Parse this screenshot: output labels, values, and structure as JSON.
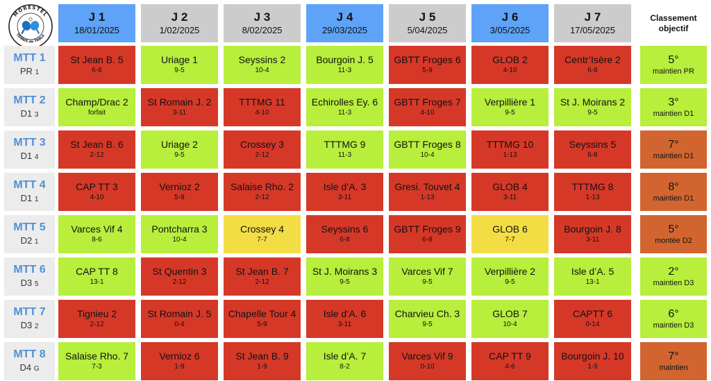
{
  "logo": {
    "top_text": "MORESTEL",
    "side_text": "TENNIS de TABLE"
  },
  "header": {
    "objective_title": "Classement objectif"
  },
  "days": [
    {
      "label": "J 1",
      "date": "18/01/2025",
      "color": "#5ea3f7"
    },
    {
      "label": "J 2",
      "date": "1/02/2025",
      "color": "#cccccc"
    },
    {
      "label": "J 3",
      "date": "8/02/2025",
      "color": "#cccccc"
    },
    {
      "label": "J 4",
      "date": "29/03/2025",
      "color": "#5ea3f7"
    },
    {
      "label": "J 5",
      "date": "5/04/2025",
      "color": "#cccccc"
    },
    {
      "label": "J 6",
      "date": "3/05/2025",
      "color": "#5ea3f7"
    },
    {
      "label": "J 7",
      "date": "17/05/2025",
      "color": "#cccccc"
    }
  ],
  "colors": {
    "win": "#b8ee3c",
    "loss": "#d63828",
    "draw": "#f3dd45",
    "obj_green": "#b8ee3c",
    "obj_orange": "#d2652f"
  },
  "teams": [
    {
      "name": "MTT 1",
      "level": "PR",
      "pool": "1",
      "matches": [
        {
          "opp": "St Jean B. 5",
          "score": "6-8",
          "result": "loss"
        },
        {
          "opp": "Uriage 1",
          "score": "9-5",
          "result": "win"
        },
        {
          "opp": "Seyssins 2",
          "score": "10-4",
          "result": "win"
        },
        {
          "opp": "Bourgoin J. 5",
          "score": "11-3",
          "result": "win"
        },
        {
          "opp": "GBTT Froges 6",
          "score": "5-9",
          "result": "loss"
        },
        {
          "opp": "GLOB 2",
          "score": "4-10",
          "result": "loss"
        },
        {
          "opp": "Centr’Isère 2",
          "score": "6-8",
          "result": "loss"
        }
      ],
      "objective": {
        "place": "5°",
        "text": "maintien PR",
        "color": "obj_green"
      }
    },
    {
      "name": "MTT 2",
      "level": "D1",
      "pool": "3",
      "matches": [
        {
          "opp": "Champ/Drac 2",
          "score": "forfait",
          "result": "win"
        },
        {
          "opp": "St Romain J. 2",
          "score": "3-11",
          "result": "loss"
        },
        {
          "opp": "TTTMG 11",
          "score": "4-10",
          "result": "loss"
        },
        {
          "opp": "Echirolles Ey. 6",
          "score": "11-3",
          "result": "win"
        },
        {
          "opp": "GBTT Froges 7",
          "score": "4-10",
          "result": "loss"
        },
        {
          "opp": "Verpillière 1",
          "score": "9-5",
          "result": "win"
        },
        {
          "opp": "St J. Moirans 2",
          "score": "9-5",
          "result": "win"
        }
      ],
      "objective": {
        "place": "3°",
        "text": "maintien D1",
        "color": "obj_green"
      }
    },
    {
      "name": "MTT 3",
      "level": "D1",
      "pool": "4",
      "matches": [
        {
          "opp": "St Jean B. 6",
          "score": "2-12",
          "result": "loss"
        },
        {
          "opp": "Uriage 2",
          "score": "9-5",
          "result": "win"
        },
        {
          "opp": "Crossey 3",
          "score": "2-12",
          "result": "loss"
        },
        {
          "opp": "TTTMG 9",
          "score": "11-3",
          "result": "win"
        },
        {
          "opp": "GBTT Froges 8",
          "score": "10-4",
          "result": "win"
        },
        {
          "opp": "TTTMG 10",
          "score": "1-13",
          "result": "loss"
        },
        {
          "opp": "Seyssins 5",
          "score": "6-8",
          "result": "loss"
        }
      ],
      "objective": {
        "place": "7°",
        "text": "maintien D1",
        "color": "obj_orange"
      }
    },
    {
      "name": "MTT 4",
      "level": "D1",
      "pool": "1",
      "matches": [
        {
          "opp": "CAP TT 3",
          "score": "4-10",
          "result": "loss"
        },
        {
          "opp": "Vernioz 2",
          "score": "5-9",
          "result": "loss"
        },
        {
          "opp": "Salaise Rho. 2",
          "score": "2-12",
          "result": "loss"
        },
        {
          "opp": "Isle d’A. 3",
          "score": "3-11",
          "result": "loss"
        },
        {
          "opp": "Gresi. Touvet 4",
          "score": "1-13",
          "result": "loss"
        },
        {
          "opp": "GLOB 4",
          "score": "3-11",
          "result": "loss"
        },
        {
          "opp": "TTTMG 8",
          "score": "1-13",
          "result": "loss"
        }
      ],
      "objective": {
        "place": "8°",
        "text": "maintien D1",
        "color": "obj_orange"
      }
    },
    {
      "name": "MTT 5",
      "level": "D2",
      "pool": "1",
      "matches": [
        {
          "opp": "Varces Vif 4",
          "score": "8-6",
          "result": "win"
        },
        {
          "opp": "Pontcharra 3",
          "score": "10-4",
          "result": "win"
        },
        {
          "opp": "Crossey 4",
          "score": "7-7",
          "result": "draw"
        },
        {
          "opp": "Seyssins 6",
          "score": "6-8",
          "result": "loss"
        },
        {
          "opp": "GBTT Froges 9",
          "score": "6-8",
          "result": "loss"
        },
        {
          "opp": "GLOB 6",
          "score": "7-7",
          "result": "draw"
        },
        {
          "opp": "Bourgoin J. 8",
          "score": "3-11",
          "result": "loss"
        }
      ],
      "objective": {
        "place": "5°",
        "text": "montée D2",
        "color": "obj_orange"
      }
    },
    {
      "name": "MTT 6",
      "level": "D3",
      "pool": "5",
      "matches": [
        {
          "opp": "CAP TT 8",
          "score": "13-1",
          "result": "win"
        },
        {
          "opp": "St Quentin 3",
          "score": "2-12",
          "result": "loss"
        },
        {
          "opp": "St Jean B. 7",
          "score": "2-12",
          "result": "loss"
        },
        {
          "opp": "St J. Moirans 3",
          "score": "9-5",
          "result": "win"
        },
        {
          "opp": "Varces Vif 7",
          "score": "9-5",
          "result": "win"
        },
        {
          "opp": "Verpillière 2",
          "score": "9-5",
          "result": "win"
        },
        {
          "opp": "Isle d’A. 5",
          "score": "13-1",
          "result": "win"
        }
      ],
      "objective": {
        "place": "2°",
        "text": "maintien D3",
        "color": "obj_green"
      }
    },
    {
      "name": "MTT 7",
      "level": "D3",
      "pool": "2",
      "matches": [
        {
          "opp": "Tignieu 2",
          "score": "2-12",
          "result": "loss"
        },
        {
          "opp": "St Romain J. 5",
          "score": "0-4",
          "result": "loss"
        },
        {
          "opp": "Chapelle Tour 4",
          "score": "5-9",
          "result": "loss"
        },
        {
          "opp": "Isle d’A. 6",
          "score": "3-11",
          "result": "loss"
        },
        {
          "opp": "Charvieu Ch. 3",
          "score": "9-5",
          "result": "win"
        },
        {
          "opp": "GLOB 7",
          "score": "10-4",
          "result": "win"
        },
        {
          "opp": "CAPTT 6",
          "score": "0-14",
          "result": "loss"
        }
      ],
      "objective": {
        "place": "6°",
        "text": "maintien D3",
        "color": "obj_green"
      }
    },
    {
      "name": "MTT 8",
      "level": "D4",
      "pool": "G",
      "matches": [
        {
          "opp": "Salaise Rho. 7",
          "score": "7-3",
          "result": "win"
        },
        {
          "opp": "Vernioz 6",
          "score": "1-9",
          "result": "loss"
        },
        {
          "opp": "St Jean B. 9",
          "score": "1-9",
          "result": "loss"
        },
        {
          "opp": "Isle d’A. 7",
          "score": "8-2",
          "result": "win"
        },
        {
          "opp": "Varces Vif 9",
          "score": "0-10",
          "result": "loss"
        },
        {
          "opp": "CAP TT 9",
          "score": "4-6",
          "result": "loss"
        },
        {
          "opp": "Bourgoin J. 10",
          "score": "1-9",
          "result": "loss"
        }
      ],
      "objective": {
        "place": "7°",
        "text": "maintien",
        "color": "obj_orange"
      }
    }
  ]
}
